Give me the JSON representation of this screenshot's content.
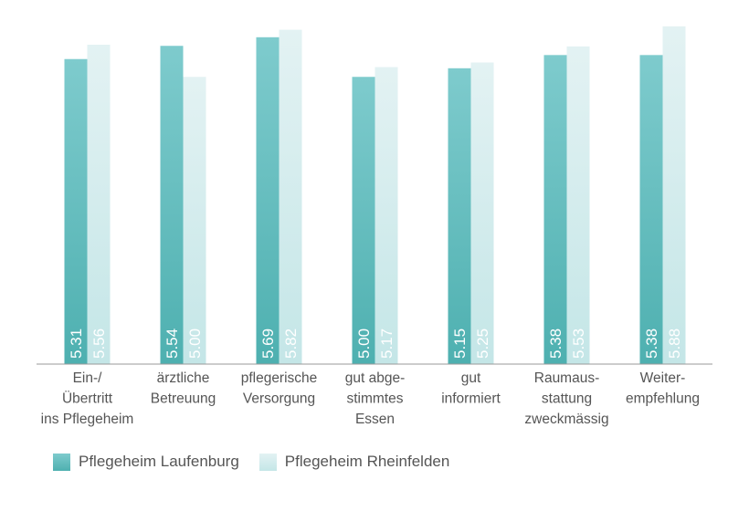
{
  "chart_data": {
    "type": "bar",
    "categories": [
      [
        "Ein-/",
        "Übertritt",
        "ins Pflegeheim"
      ],
      [
        "ärztliche",
        "Betreuung"
      ],
      [
        "pflegerische",
        "Versorgung"
      ],
      [
        "gut abge-",
        "stimmtes",
        "Essen"
      ],
      [
        "gut",
        "informiert"
      ],
      [
        "Raumaus-",
        "stattung",
        "zweckmässig"
      ],
      [
        "Weiter-",
        "empfehlung"
      ]
    ],
    "series": [
      {
        "name": "Pflegeheim Laufenburg",
        "values": [
          5.31,
          5.54,
          5.69,
          5.0,
          5.15,
          5.38,
          5.38
        ],
        "labels": [
          "5.31",
          "5.54",
          "5.69",
          "5.00",
          "5.15",
          "5.38",
          "5.38"
        ],
        "color_top": "#7ecbcd",
        "color_bottom": "#4eb0b0"
      },
      {
        "name": "Pflegeheim Rheinfelden",
        "values": [
          5.56,
          5.0,
          5.82,
          5.17,
          5.25,
          5.53,
          5.88
        ],
        "labels": [
          "5.56",
          "5.00",
          "5.82",
          "5.17",
          "5.25",
          "5.53",
          "5.88"
        ],
        "color_top": "#e3f2f3",
        "color_bottom": "#c4e6e7"
      }
    ],
    "ylim": [
      0,
      6.1
    ],
    "grid": false,
    "legend": "bottom-left"
  }
}
